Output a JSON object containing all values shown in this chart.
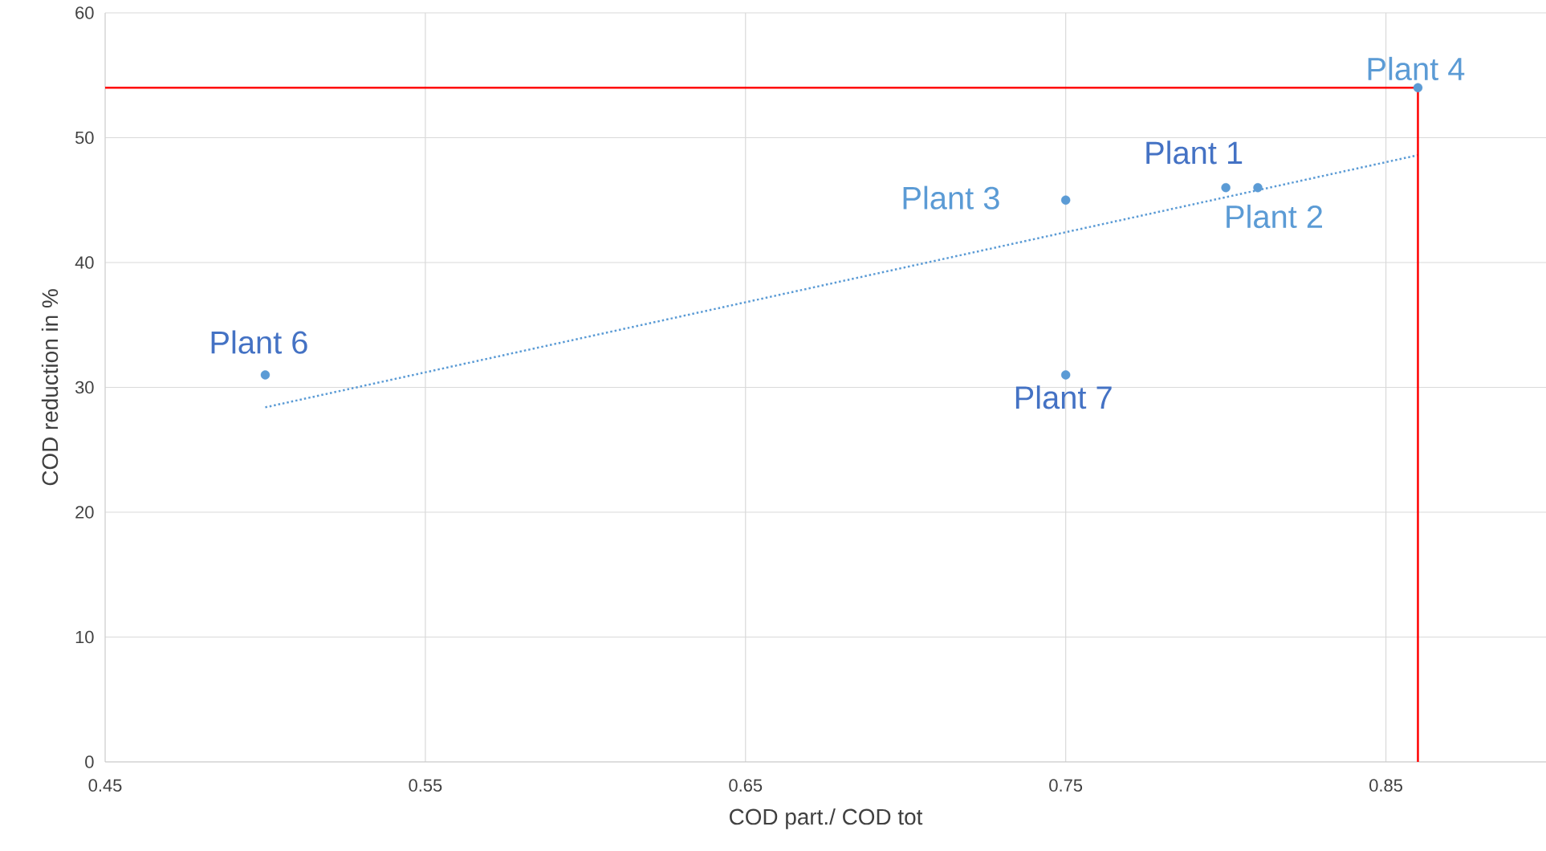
{
  "chart_data": {
    "type": "scatter",
    "xlabel": "COD part./ COD tot",
    "ylabel": "COD reduction in %",
    "xlim": [
      0.45,
      0.9
    ],
    "ylim": [
      0,
      60
    ],
    "xticks": [
      0.45,
      0.55,
      0.65,
      0.75,
      0.85
    ],
    "yticks": [
      0,
      10,
      20,
      30,
      40,
      50,
      60
    ],
    "grid": true,
    "series": [
      {
        "color": "#5b9bd5",
        "marker": "circle",
        "x": [
          0.8,
          0.81,
          0.75,
          0.86,
          0.5,
          0.75
        ],
        "values": [
          46,
          46,
          45,
          54,
          31,
          31
        ]
      },
      {
        "type": "line",
        "line_style": "dotted",
        "color": "#5b9bd5",
        "x": [
          0.5,
          0.86
        ],
        "values": [
          28.4,
          48.6
        ]
      }
    ],
    "ref_lines": [
      {
        "axis": "y",
        "value": 54,
        "color": "#ff0000"
      },
      {
        "axis": "x",
        "value": 0.86,
        "color": "#ff0000"
      }
    ],
    "annotations": [
      {
        "text": "Plant 1",
        "x": 0.8,
        "y": 46
      },
      {
        "text": "Plant 2",
        "x": 0.81,
        "y": 46
      },
      {
        "text": "Plant 3",
        "x": 0.75,
        "y": 45
      },
      {
        "text": "Plant 4",
        "x": 0.86,
        "y": 54
      },
      {
        "text": "Plant 6",
        "x": 0.5,
        "y": 31
      },
      {
        "text": "Plant 7",
        "x": 0.75,
        "y": 31
      }
    ]
  }
}
